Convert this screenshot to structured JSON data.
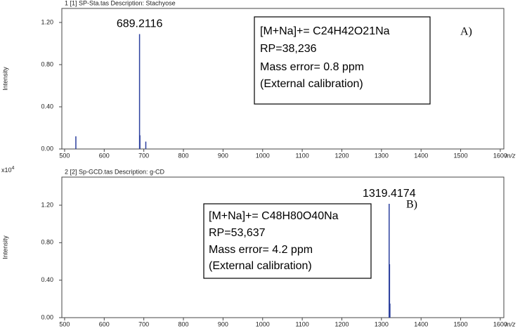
{
  "chart_data": [
    {
      "type": "spectrum",
      "title": "1 [1] SP-Sta.tas    Description: Stachyose",
      "y_label": "Intensity",
      "x_label": "m/z",
      "x": [
        528.4,
        689.2116,
        690.2,
        705.0
      ],
      "values": [
        0.12,
        1.09,
        0.13,
        0.07
      ],
      "color": "#2b3f9e",
      "xlim": [
        493,
        1609
      ],
      "ylim": [
        0,
        1.333
      ],
      "xticks": [
        500,
        600,
        700,
        800,
        900,
        1000,
        1100,
        1200,
        1300,
        1400,
        1500,
        1600
      ],
      "yticks": [
        {
          "value": 0,
          "label": "0.00"
        },
        {
          "value": 0.4,
          "label": "0.40"
        },
        {
          "value": 0.8,
          "label": "0.80"
        },
        {
          "value": 1.2,
          "label": "1.20"
        }
      ],
      "annotation_lines": [
        "[M+Na]+= C24H42O21Na",
        "RP=38,236",
        "Mass error= 0.8 ppm",
        "(External calibration)"
      ],
      "panel_label": "A)"
    },
    {
      "type": "spectrum",
      "title": "2 [2] Sp-GCD.tas    Description: g-CD",
      "y_label": "Intensity",
      "x_label": "m/z",
      "y_scale": {
        "base": "x10",
        "exponent": "4"
      },
      "x": [
        1319.4174,
        1320.42,
        1321.42
      ],
      "values": [
        1.215,
        0.57,
        0.15
      ],
      "color": "#2b3f9e",
      "xlim": [
        493,
        1609
      ],
      "ylim": [
        0,
        1.5
      ],
      "xticks": [
        500,
        600,
        700,
        800,
        900,
        1000,
        1100,
        1200,
        1300,
        1400,
        1500,
        1600
      ],
      "yticks": [
        {
          "value": 0,
          "label": "0.00"
        },
        {
          "value": 0.4,
          "label": "0.40"
        },
        {
          "value": 0.8,
          "label": "0.80"
        },
        {
          "value": 1.2,
          "label": "1.20"
        }
      ],
      "annotation_lines": [
        "[M+Na]+= C48H80O40Na",
        "RP=53,637",
        "Mass error= 4.2 ppm",
        "(External calibration)"
      ],
      "panel_label": "B)"
    }
  ]
}
